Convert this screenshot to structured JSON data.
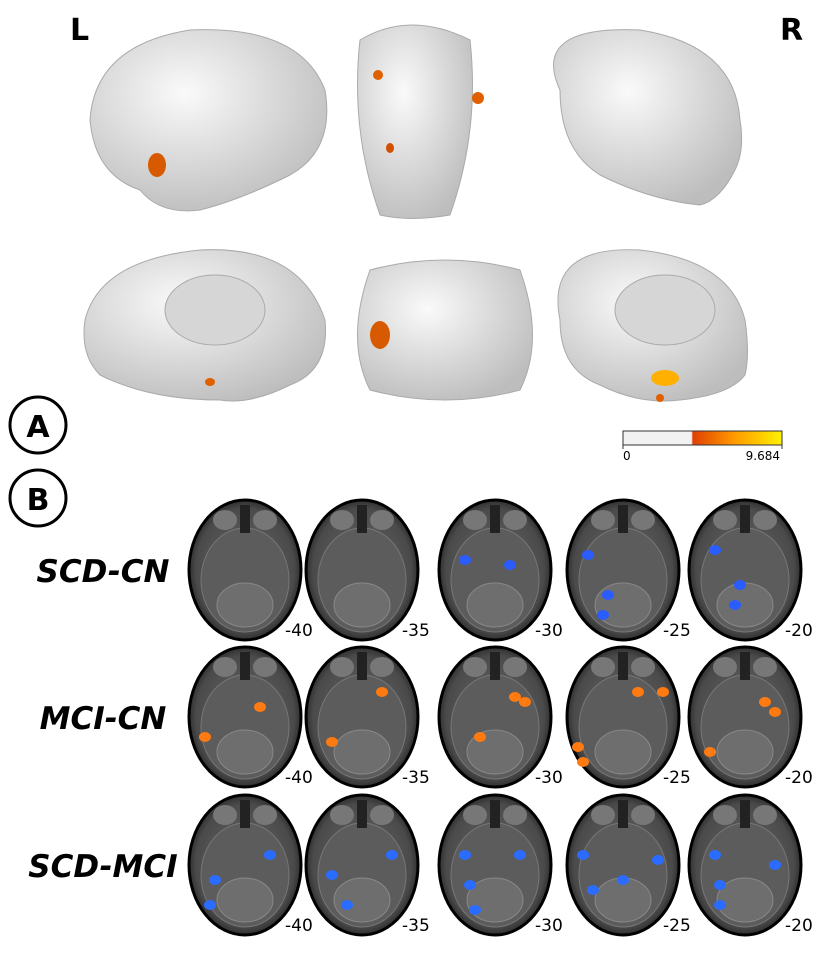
{
  "panel_a": {
    "label": "A",
    "left_label": "L",
    "right_label": "R",
    "colorbar": {
      "min": 0,
      "max": 9.684
    }
  },
  "panel_b": {
    "label": "B",
    "slices": [
      -40,
      -35,
      -30,
      -25,
      -20
    ],
    "rows": [
      {
        "name": "SCD-CN"
      },
      {
        "name": "MCI-CN"
      },
      {
        "name": "SCD-MCI"
      }
    ]
  }
}
